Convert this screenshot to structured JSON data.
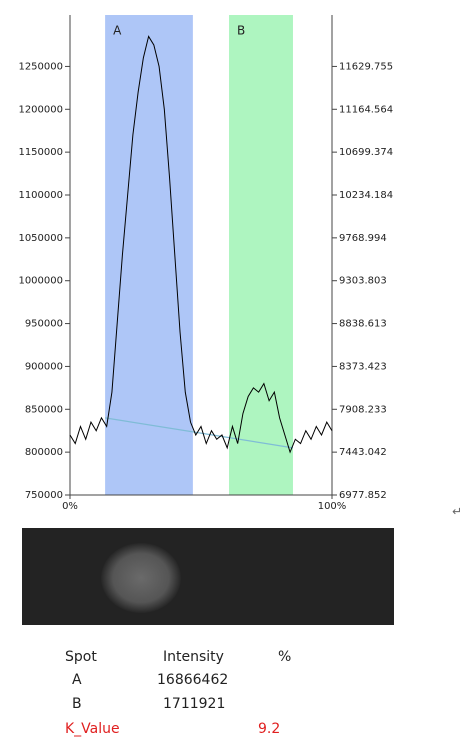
{
  "chart_data": {
    "type": "line",
    "xlim": [
      0,
      100
    ],
    "xticks": [
      {
        "value": 0,
        "label": "0%"
      },
      {
        "value": 100,
        "label": "100%"
      }
    ],
    "ylim": [
      750000,
      1310000
    ],
    "yticks": [
      750000,
      800000,
      850000,
      900000,
      950000,
      1000000,
      1050000,
      1100000,
      1150000,
      1200000,
      1250000
    ],
    "y2lim": [
      6977.852,
      12187.95
    ],
    "y2ticks": [
      6977.852,
      7443.042,
      7908.233,
      8373.423,
      8838.613,
      9303.803,
      9768.994,
      10234.184,
      10699.374,
      11164.564,
      11629.755
    ],
    "regions": [
      {
        "label": "A",
        "x": [
          13.4,
          46.9
        ],
        "color": "#aec6f7"
      },
      {
        "label": "B",
        "x": [
          60.7,
          85.1
        ],
        "color": "#aef5c0"
      }
    ],
    "profile": {
      "color": "#000000",
      "x": [
        0,
        2,
        4,
        6,
        8,
        10,
        12,
        14,
        16,
        18,
        20,
        22,
        24,
        26,
        28,
        30,
        32,
        34,
        36,
        38,
        40,
        42,
        44,
        46,
        48,
        50,
        52,
        54,
        56,
        58,
        60,
        62,
        64,
        66,
        68,
        70,
        72,
        74,
        76,
        78,
        80,
        82,
        84,
        86,
        88,
        90,
        92,
        94,
        96,
        98,
        100
      ],
      "values": [
        820000,
        810000,
        830000,
        815000,
        835000,
        825000,
        840000,
        830000,
        870000,
        950000,
        1030000,
        1100000,
        1170000,
        1220000,
        1260000,
        1285000,
        1275000,
        1250000,
        1200000,
        1120000,
        1030000,
        940000,
        870000,
        835000,
        820000,
        830000,
        810000,
        825000,
        815000,
        820000,
        805000,
        830000,
        810000,
        845000,
        865000,
        875000,
        870000,
        880000,
        860000,
        870000,
        840000,
        820000,
        800000,
        815000,
        810000,
        825000,
        815000,
        830000,
        820000,
        835000,
        825000
      ]
    },
    "baseline": {
      "color": "#7fbcd6",
      "x": [
        13.4,
        85.1
      ],
      "values": [
        840000,
        805000
      ]
    }
  },
  "paragraph_mark": "↵",
  "table": {
    "columns": [
      "Spot",
      "Intensity",
      "%"
    ],
    "rows": [
      {
        "spot": "A",
        "intensity": 16866462
      },
      {
        "spot": "B",
        "intensity": 1711921
      }
    ],
    "k_value": {
      "label": "K_Value",
      "value": 9.2
    }
  }
}
